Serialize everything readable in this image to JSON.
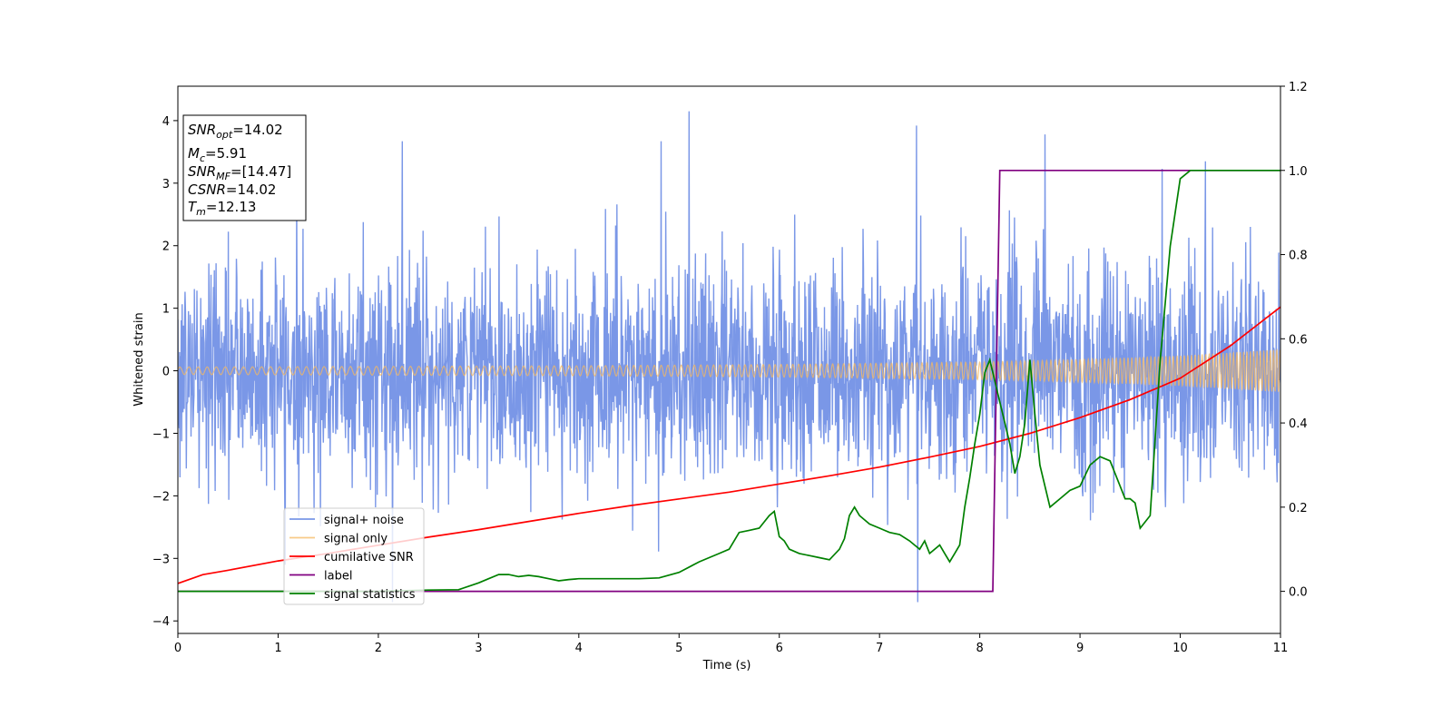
{
  "chart_data": {
    "type": "line",
    "xlabel": "Time (s)",
    "ylabel": "Whitened strain",
    "xlim": [
      0,
      11
    ],
    "ylim": [
      -4.2,
      4.55
    ],
    "y2lim": [
      -0.1,
      1.2
    ],
    "x_ticks": [
      0,
      1,
      2,
      3,
      4,
      5,
      6,
      7,
      8,
      9,
      10,
      11
    ],
    "y_ticks": [
      -4,
      -3,
      -2,
      -1,
      0,
      1,
      2,
      3,
      4
    ],
    "y2_ticks": [
      0.0,
      0.2,
      0.4,
      0.6,
      0.8,
      1.0,
      1.2
    ],
    "y_tick_labels": [
      "−4",
      "−3",
      "−2",
      "−1",
      "0",
      "1",
      "2",
      "3",
      "4"
    ],
    "y2_tick_labels": [
      "0.0",
      "0.2",
      "0.4",
      "0.6",
      "0.8",
      "1.0",
      "1.2"
    ],
    "x_tick_labels": [
      "0",
      "1",
      "2",
      "3",
      "4",
      "5",
      "6",
      "7",
      "8",
      "9",
      "10",
      "11"
    ],
    "legend_position": "lower-left",
    "stats_box": {
      "snr_opt": {
        "sym": "SNR",
        "sub": "opt",
        "value": "=14.02"
      },
      "mc": {
        "sym": "M",
        "sub": "c",
        "value": "=5.91"
      },
      "snr_mf": {
        "sym": "SNR",
        "sub": "MF",
        "value": "=[14.47]"
      },
      "csnr": {
        "sym": "CSNR",
        "value": "=14.02"
      },
      "tm": {
        "sym": "T",
        "sub": "m",
        "value": "=12.13"
      }
    },
    "series": [
      {
        "name": "signal+ noise",
        "color": "#7391e6",
        "axis": "left",
        "description_values": "noisy whitened strain, approx. Gaussian with std ~0.85, range about -3.75 to 4.2",
        "spikes": [
          [
            1.07,
            -3.1
          ],
          [
            2.14,
            -3.75
          ],
          [
            2.24,
            3.67
          ],
          [
            4.82,
            3.67
          ],
          [
            5.1,
            4.2
          ],
          [
            7.37,
            3.92
          ],
          [
            7.38,
            -3.75
          ],
          [
            8.65,
            3.78
          ],
          [
            9.82,
            3.23
          ],
          [
            10.25,
            3.35
          ]
        ]
      },
      {
        "name": "signal only",
        "color": "#f5b860",
        "axis": "left",
        "envelope": [
          [
            0,
            0.06
          ],
          [
            2,
            0.07
          ],
          [
            4,
            0.08
          ],
          [
            6,
            0.1
          ],
          [
            8,
            0.14
          ],
          [
            9,
            0.18
          ],
          [
            10,
            0.24
          ],
          [
            11,
            0.34
          ]
        ]
      },
      {
        "name": "cumilative SNR",
        "color": "#ff0000",
        "axis": "left",
        "x": [
          0,
          0.25,
          0.5,
          1,
          1.5,
          2,
          2.5,
          3,
          3.5,
          4,
          4.5,
          5,
          5.5,
          6,
          6.5,
          7,
          7.5,
          8,
          8.5,
          9,
          9.5,
          10,
          10.5,
          11
        ],
        "y": [
          -3.4,
          -3.26,
          -3.19,
          -3.04,
          -2.92,
          -2.79,
          -2.66,
          -2.54,
          -2.41,
          -2.28,
          -2.16,
          -2.05,
          -1.94,
          -1.81,
          -1.68,
          -1.54,
          -1.38,
          -1.21,
          -1.0,
          -0.75,
          -0.46,
          -0.12,
          0.4,
          1.02
        ]
      },
      {
        "name": "label",
        "color": "#800080",
        "axis": "right",
        "x": [
          0,
          8.13,
          8.2,
          11
        ],
        "y": [
          0.0,
          0.0,
          1.0,
          1.0
        ]
      },
      {
        "name": "signal statistics",
        "color": "#008000",
        "axis": "right",
        "x": [
          0,
          1,
          2,
          2.5,
          2.8,
          3.0,
          3.1,
          3.2,
          3.3,
          3.4,
          3.5,
          3.6,
          3.7,
          3.8,
          3.9,
          4.0,
          4.2,
          4.4,
          4.6,
          4.8,
          5.0,
          5.2,
          5.3,
          5.4,
          5.5,
          5.6,
          5.7,
          5.8,
          5.9,
          5.95,
          6.0,
          6.05,
          6.1,
          6.2,
          6.3,
          6.4,
          6.5,
          6.6,
          6.65,
          6.7,
          6.75,
          6.8,
          6.9,
          7.0,
          7.05,
          7.1,
          7.2,
          7.3,
          7.35,
          7.4,
          7.45,
          7.5,
          7.6,
          7.65,
          7.7,
          7.75,
          7.8,
          7.85,
          7.9,
          7.95,
          8.0,
          8.05,
          8.1,
          8.15,
          8.2,
          8.25,
          8.3,
          8.35,
          8.4,
          8.45,
          8.5,
          8.55,
          8.6,
          8.7,
          8.8,
          8.9,
          9.0,
          9.1,
          9.2,
          9.3,
          9.4,
          9.45,
          9.5,
          9.55,
          9.6,
          9.7,
          9.8,
          9.9,
          10.0,
          10.1,
          10.2,
          11
        ],
        "y": [
          0.0,
          0.0,
          0.0,
          0.003,
          0.004,
          0.02,
          0.03,
          0.04,
          0.04,
          0.035,
          0.038,
          0.035,
          0.03,
          0.025,
          0.028,
          0.03,
          0.03,
          0.03,
          0.03,
          0.032,
          0.045,
          0.07,
          0.08,
          0.09,
          0.1,
          0.14,
          0.145,
          0.15,
          0.18,
          0.19,
          0.13,
          0.12,
          0.1,
          0.09,
          0.085,
          0.08,
          0.075,
          0.1,
          0.125,
          0.18,
          0.2,
          0.18,
          0.16,
          0.15,
          0.145,
          0.14,
          0.135,
          0.12,
          0.11,
          0.1,
          0.12,
          0.09,
          0.11,
          0.09,
          0.07,
          0.09,
          0.11,
          0.2,
          0.27,
          0.35,
          0.42,
          0.52,
          0.55,
          0.5,
          0.45,
          0.4,
          0.35,
          0.28,
          0.32,
          0.4,
          0.55,
          0.42,
          0.3,
          0.2,
          0.22,
          0.24,
          0.25,
          0.3,
          0.32,
          0.31,
          0.25,
          0.22,
          0.22,
          0.21,
          0.15,
          0.18,
          0.55,
          0.82,
          0.98,
          1.0,
          1.0,
          1.0
        ]
      }
    ]
  }
}
